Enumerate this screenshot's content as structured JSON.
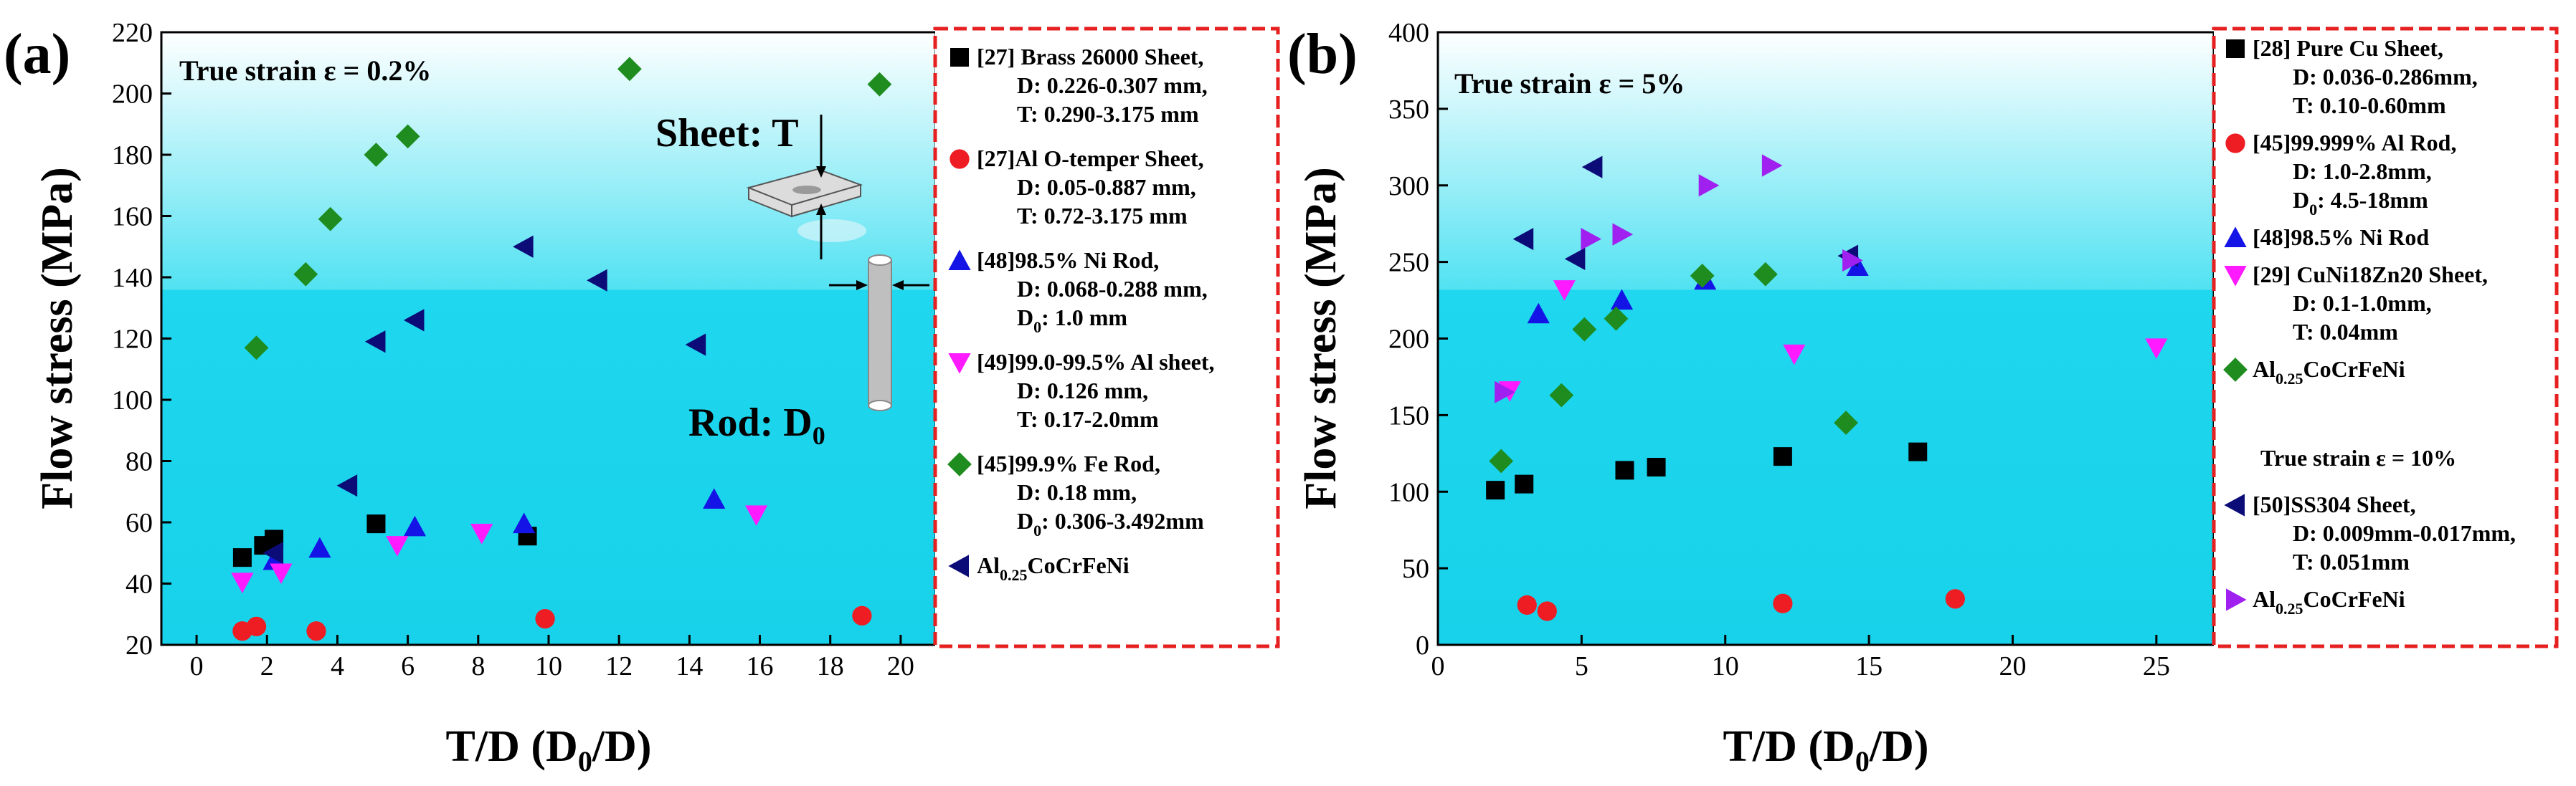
{
  "chart_data": [
    {
      "panel": "(a)",
      "type": "scatter",
      "xlabel": "T/D (D0/D)",
      "ylabel": "Flow stress (MPa)",
      "xlim": [
        -1,
        21
      ],
      "ylim": [
        20,
        220
      ],
      "xticks": [
        0,
        2,
        4,
        6,
        8,
        10,
        12,
        14,
        16,
        18,
        20
      ],
      "yticks": [
        20,
        40,
        60,
        80,
        100,
        120,
        140,
        160,
        180,
        200,
        220
      ],
      "annotation": "True strain ε = 0.2%",
      "inset_labels": {
        "sheet": "Sheet: T",
        "rod": "Rod: D0"
      },
      "series": [
        {
          "marker": "square",
          "color": "#000000",
          "legend": [
            "[27] Brass 26000 Sheet,",
            "D: 0.226-0.307 mm,",
            "T: 0.290-3.175 mm"
          ],
          "points": [
            [
              1.3,
              48.5
            ],
            [
              1.9,
              52.5
            ],
            [
              2.2,
              54.5
            ],
            [
              5.1,
              59.5
            ],
            [
              9.4,
              55.5
            ]
          ]
        },
        {
          "marker": "circle",
          "color": "#ee1d23",
          "legend": [
            "[27]Al O-temper Sheet,",
            "D: 0.05-0.887 mm,",
            "T: 0.72-3.175 mm"
          ],
          "points": [
            [
              1.3,
              24.5
            ],
            [
              1.7,
              26
            ],
            [
              3.4,
              24.5
            ],
            [
              9.9,
              28.5
            ],
            [
              18.9,
              29.5
            ]
          ]
        },
        {
          "marker": "triangle-up",
          "color": "#1414e6",
          "legend": [
            "[48]98.5% Ni Rod,",
            "D: 0.068-0.288 mm,",
            "D0: 1.0 mm"
          ],
          "points": [
            [
              2.2,
              47.5
            ],
            [
              3.5,
              51.5
            ],
            [
              6.2,
              58.5
            ],
            [
              9.3,
              59.5
            ],
            [
              14.7,
              67.5
            ]
          ]
        },
        {
          "marker": "triangle-down",
          "color": "#ff1aff",
          "legend": [
            "[49]99.0-99.5% Al sheet,",
            "D: 0.126 mm,",
            "T: 0.17-2.0mm"
          ],
          "points": [
            [
              1.3,
              40.5
            ],
            [
              2.4,
              43.5
            ],
            [
              5.7,
              52.5
            ],
            [
              8.1,
              56.5
            ],
            [
              15.9,
              62.5
            ]
          ]
        },
        {
          "marker": "diamond",
          "color": "#1f8c1f",
          "legend": [
            "[45]99.9% Fe Rod,",
            "D: 0.18 mm,",
            "D0: 0.306-3.492mm"
          ],
          "points": [
            [
              1.7,
              117
            ],
            [
              3.1,
              141
            ],
            [
              3.8,
              159
            ],
            [
              5.1,
              180
            ],
            [
              6.0,
              186
            ],
            [
              12.3,
              208
            ],
            [
              19.4,
              203
            ]
          ]
        },
        {
          "marker": "triangle-left",
          "color": "#0c0c78",
          "legend": [
            "Al0.25CoCrFeNi"
          ],
          "points": [
            [
              2.2,
              50
            ],
            [
              4.3,
              72
            ],
            [
              5.1,
              119
            ],
            [
              6.2,
              126
            ],
            [
              9.3,
              150
            ],
            [
              11.4,
              139
            ],
            [
              14.2,
              118
            ]
          ]
        }
      ]
    },
    {
      "panel": "(b)",
      "type": "scatter",
      "xlabel": "T/D (D0/D)",
      "ylabel": "Flow stress (MPa)",
      "xlim": [
        0,
        27
      ],
      "ylim": [
        0,
        400
      ],
      "xticks": [
        0,
        5,
        10,
        15,
        20,
        25
      ],
      "yticks": [
        0,
        50,
        100,
        150,
        200,
        250,
        300,
        350,
        400
      ],
      "annotation": "True strain ε = 5%",
      "annotation_2": "True strain ε = 10%",
      "series": [
        {
          "marker": "square",
          "color": "#000000",
          "legend": [
            "[28] Pure Cu Sheet,",
            "D: 0.036-0.286mm,",
            "T: 0.10-0.60mm"
          ],
          "points": [
            [
              2.0,
              101
            ],
            [
              3.0,
              105
            ],
            [
              6.5,
              114
            ],
            [
              7.6,
              116
            ],
            [
              12.0,
              123
            ],
            [
              16.7,
              126
            ]
          ]
        },
        {
          "marker": "circle",
          "color": "#ee1d23",
          "legend": [
            "[45]99.999% Al Rod,",
            "D: 1.0-2.8mm,",
            "D0: 4.5-18mm"
          ],
          "points": [
            [
              3.1,
              26
            ],
            [
              3.8,
              22
            ],
            [
              12.0,
              27
            ],
            [
              18.0,
              30
            ]
          ]
        },
        {
          "marker": "triangle-up",
          "color": "#1414e6",
          "legend": [
            "[48]98.5% Ni Rod"
          ],
          "points": [
            [
              3.5,
              216
            ],
            [
              6.4,
              225
            ],
            [
              9.3,
              238
            ],
            [
              14.6,
              247
            ]
          ]
        },
        {
          "marker": "triangle-down",
          "color": "#ff1aff",
          "legend": [
            "[29] CuNi18Zn20 Sheet,",
            "D: 0.1-1.0mm,",
            "T: 0.04mm"
          ],
          "points": [
            [
              2.5,
              166
            ],
            [
              4.4,
              232
            ],
            [
              12.4,
              190
            ],
            [
              25.0,
              194
            ]
          ]
        },
        {
          "marker": "diamond",
          "color": "#1f8c1f",
          "legend": [
            "Al0.25CoCrFeNi"
          ],
          "points": [
            [
              2.2,
              120
            ],
            [
              4.3,
              163
            ],
            [
              5.1,
              206
            ],
            [
              6.2,
              213
            ],
            [
              9.2,
              241
            ],
            [
              11.4,
              242
            ],
            [
              14.2,
              145
            ]
          ]
        },
        {
          "marker": "triangle-left",
          "color": "#0c0c78",
          "legend": [
            "[50]SS304 Sheet,",
            "D: 0.009mm-0.017mm,",
            "T: 0.051mm"
          ],
          "points": [
            [
              3.0,
              265
            ],
            [
              4.8,
              252
            ],
            [
              5.4,
              312
            ],
            [
              14.3,
              254
            ]
          ]
        },
        {
          "marker": "triangle-right",
          "color": "#a020f0",
          "legend": [
            "Al0.25CoCrFeNi"
          ],
          "points": [
            [
              2.3,
              165
            ],
            [
              5.3,
              265
            ],
            [
              6.4,
              268
            ],
            [
              9.4,
              300
            ],
            [
              11.6,
              313
            ],
            [
              14.4,
              251
            ]
          ]
        }
      ]
    }
  ]
}
